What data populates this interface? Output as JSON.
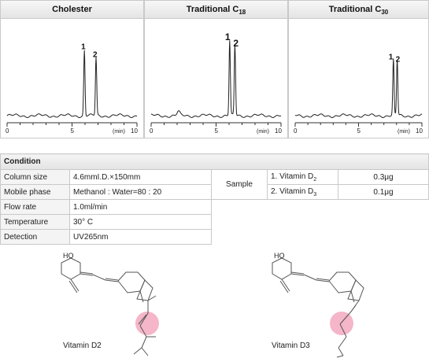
{
  "chart_data": [
    {
      "type": "line",
      "title": "Cholester",
      "title_sub": "",
      "xlim": [
        0,
        10
      ],
      "x_ticks": [
        0,
        5,
        10
      ],
      "xlabel": "(min)",
      "baseline_start": 0.0,
      "peaks": [
        {
          "label": "1",
          "x": 5.95,
          "height": 0.85
        },
        {
          "label": "2",
          "x": 6.85,
          "height": 0.75
        }
      ]
    },
    {
      "type": "line",
      "title": "Traditional C",
      "title_sub": "18",
      "xlim": [
        0,
        10
      ],
      "x_ticks": [
        0,
        5,
        10
      ],
      "xlabel": "(min)",
      "peaks": [
        {
          "label": "1",
          "x": 6.05,
          "height": 0.97
        },
        {
          "label": "2",
          "x": 6.45,
          "height": 0.92
        }
      ]
    },
    {
      "type": "line",
      "title": "Traditional C",
      "title_sub": "30",
      "xlim": [
        0,
        10
      ],
      "x_ticks": [
        0,
        5,
        10
      ],
      "xlabel": "(min)",
      "peaks": [
        {
          "label": "1",
          "x": 7.75,
          "height": 0.72
        },
        {
          "label": "2",
          "x": 8.05,
          "height": 0.72
        }
      ]
    }
  ],
  "condition": {
    "title": "Condition",
    "rows": [
      {
        "label": "Column size",
        "value": "4.6mmI.D.×150mm"
      },
      {
        "label": "Mobile phase",
        "value": "Methanol : Water=80 : 20"
      },
      {
        "label": "Flow rate",
        "value": "1.0ml/min"
      },
      {
        "label": "Temperature",
        "value": "30° C"
      },
      {
        "label": "Detection",
        "value": "UV265nm"
      }
    ],
    "sample_label": "Sample",
    "samples": [
      {
        "name": "1. Vitamin D",
        "sub": "2",
        "amount": "0.3μg"
      },
      {
        "name": "2. Vitamin D",
        "sub": "3",
        "amount": "0.1μg"
      }
    ]
  },
  "structures": [
    {
      "label": "Vitamin D2",
      "oh": "HO"
    },
    {
      "label": "Vitamin D3",
      "oh": "HO"
    }
  ],
  "colors": {
    "highlight": "#f4b6c8",
    "border": "#c9c9c9",
    "header": "#e4e4e4"
  }
}
